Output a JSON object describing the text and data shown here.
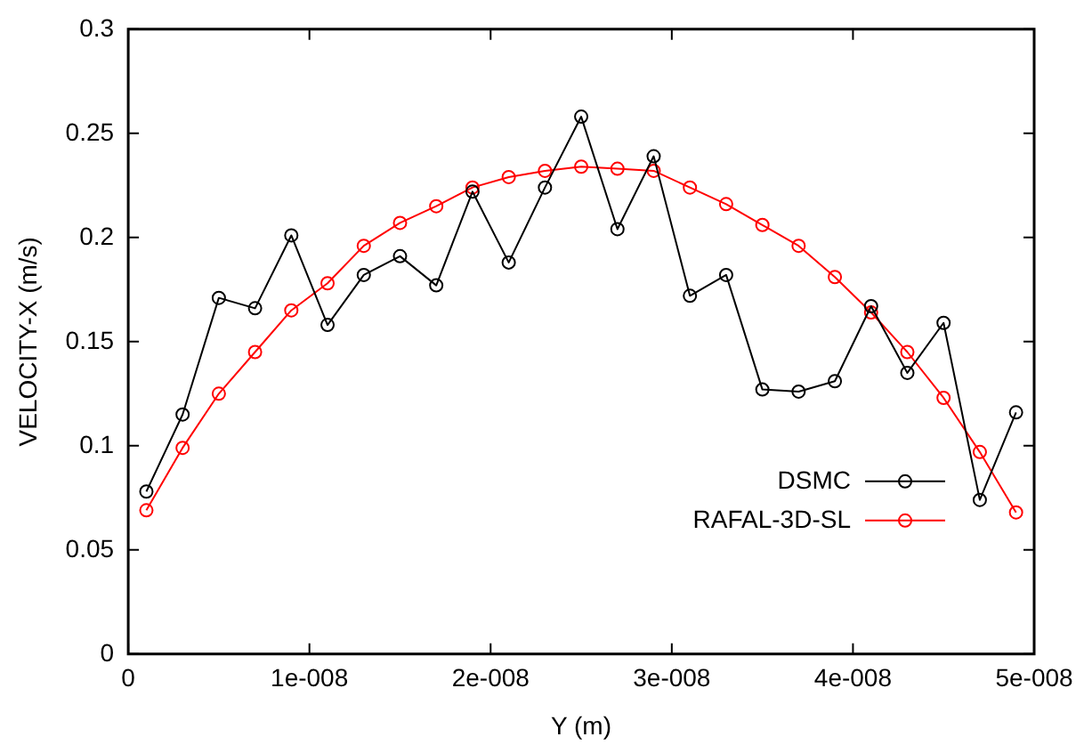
{
  "chart_data": {
    "type": "line",
    "xlabel": "Y (m)",
    "ylabel": "VELOCITY-X (m/s)",
    "x": [
      1e-09,
      3e-09,
      5e-09,
      7e-09,
      9e-09,
      1.1e-08,
      1.3e-08,
      1.5e-08,
      1.7e-08,
      1.9e-08,
      2.1e-08,
      2.3e-08,
      2.5e-08,
      2.7e-08,
      2.9e-08,
      3.1e-08,
      3.3e-08,
      3.5e-08,
      3.7e-08,
      3.9e-08,
      4.1e-08,
      4.3e-08,
      4.5e-08,
      4.7e-08,
      4.9e-08
    ],
    "series": [
      {
        "name": "DSMC",
        "color": "#000000",
        "values": [
          0.078,
          0.115,
          0.171,
          0.166,
          0.201,
          0.158,
          0.182,
          0.191,
          0.177,
          0.222,
          0.188,
          0.224,
          0.258,
          0.204,
          0.239,
          0.172,
          0.182,
          0.127,
          0.126,
          0.131,
          0.167,
          0.135,
          0.159,
          0.074,
          0.116
        ]
      },
      {
        "name": "RAFAL-3D-SL",
        "color": "#ff0000",
        "values": [
          0.069,
          0.099,
          0.125,
          0.145,
          0.165,
          0.178,
          0.196,
          0.207,
          0.215,
          0.224,
          0.229,
          0.232,
          0.234,
          0.233,
          0.232,
          0.224,
          0.216,
          0.206,
          0.196,
          0.181,
          0.164,
          0.145,
          0.123,
          0.097,
          0.068
        ]
      }
    ],
    "xlim": [
      0,
      5e-08
    ],
    "xticks": [
      0,
      {
        "value": 1e-08,
        "label": "1e-008"
      },
      {
        "value": 2e-08,
        "label": "2e-008"
      },
      {
        "value": 3e-08,
        "label": "3e-008"
      },
      {
        "value": 4e-08,
        "label": "4e-008"
      },
      {
        "value": 5e-08,
        "label": "5e-008"
      }
    ],
    "ylim": [
      0,
      0.3
    ],
    "yticks": [
      0,
      0.05,
      0.1,
      0.15,
      0.2,
      0.25,
      0.3
    ],
    "grid": false,
    "legend": "bottom right",
    "marker": "circle",
    "line_style": "solid"
  }
}
